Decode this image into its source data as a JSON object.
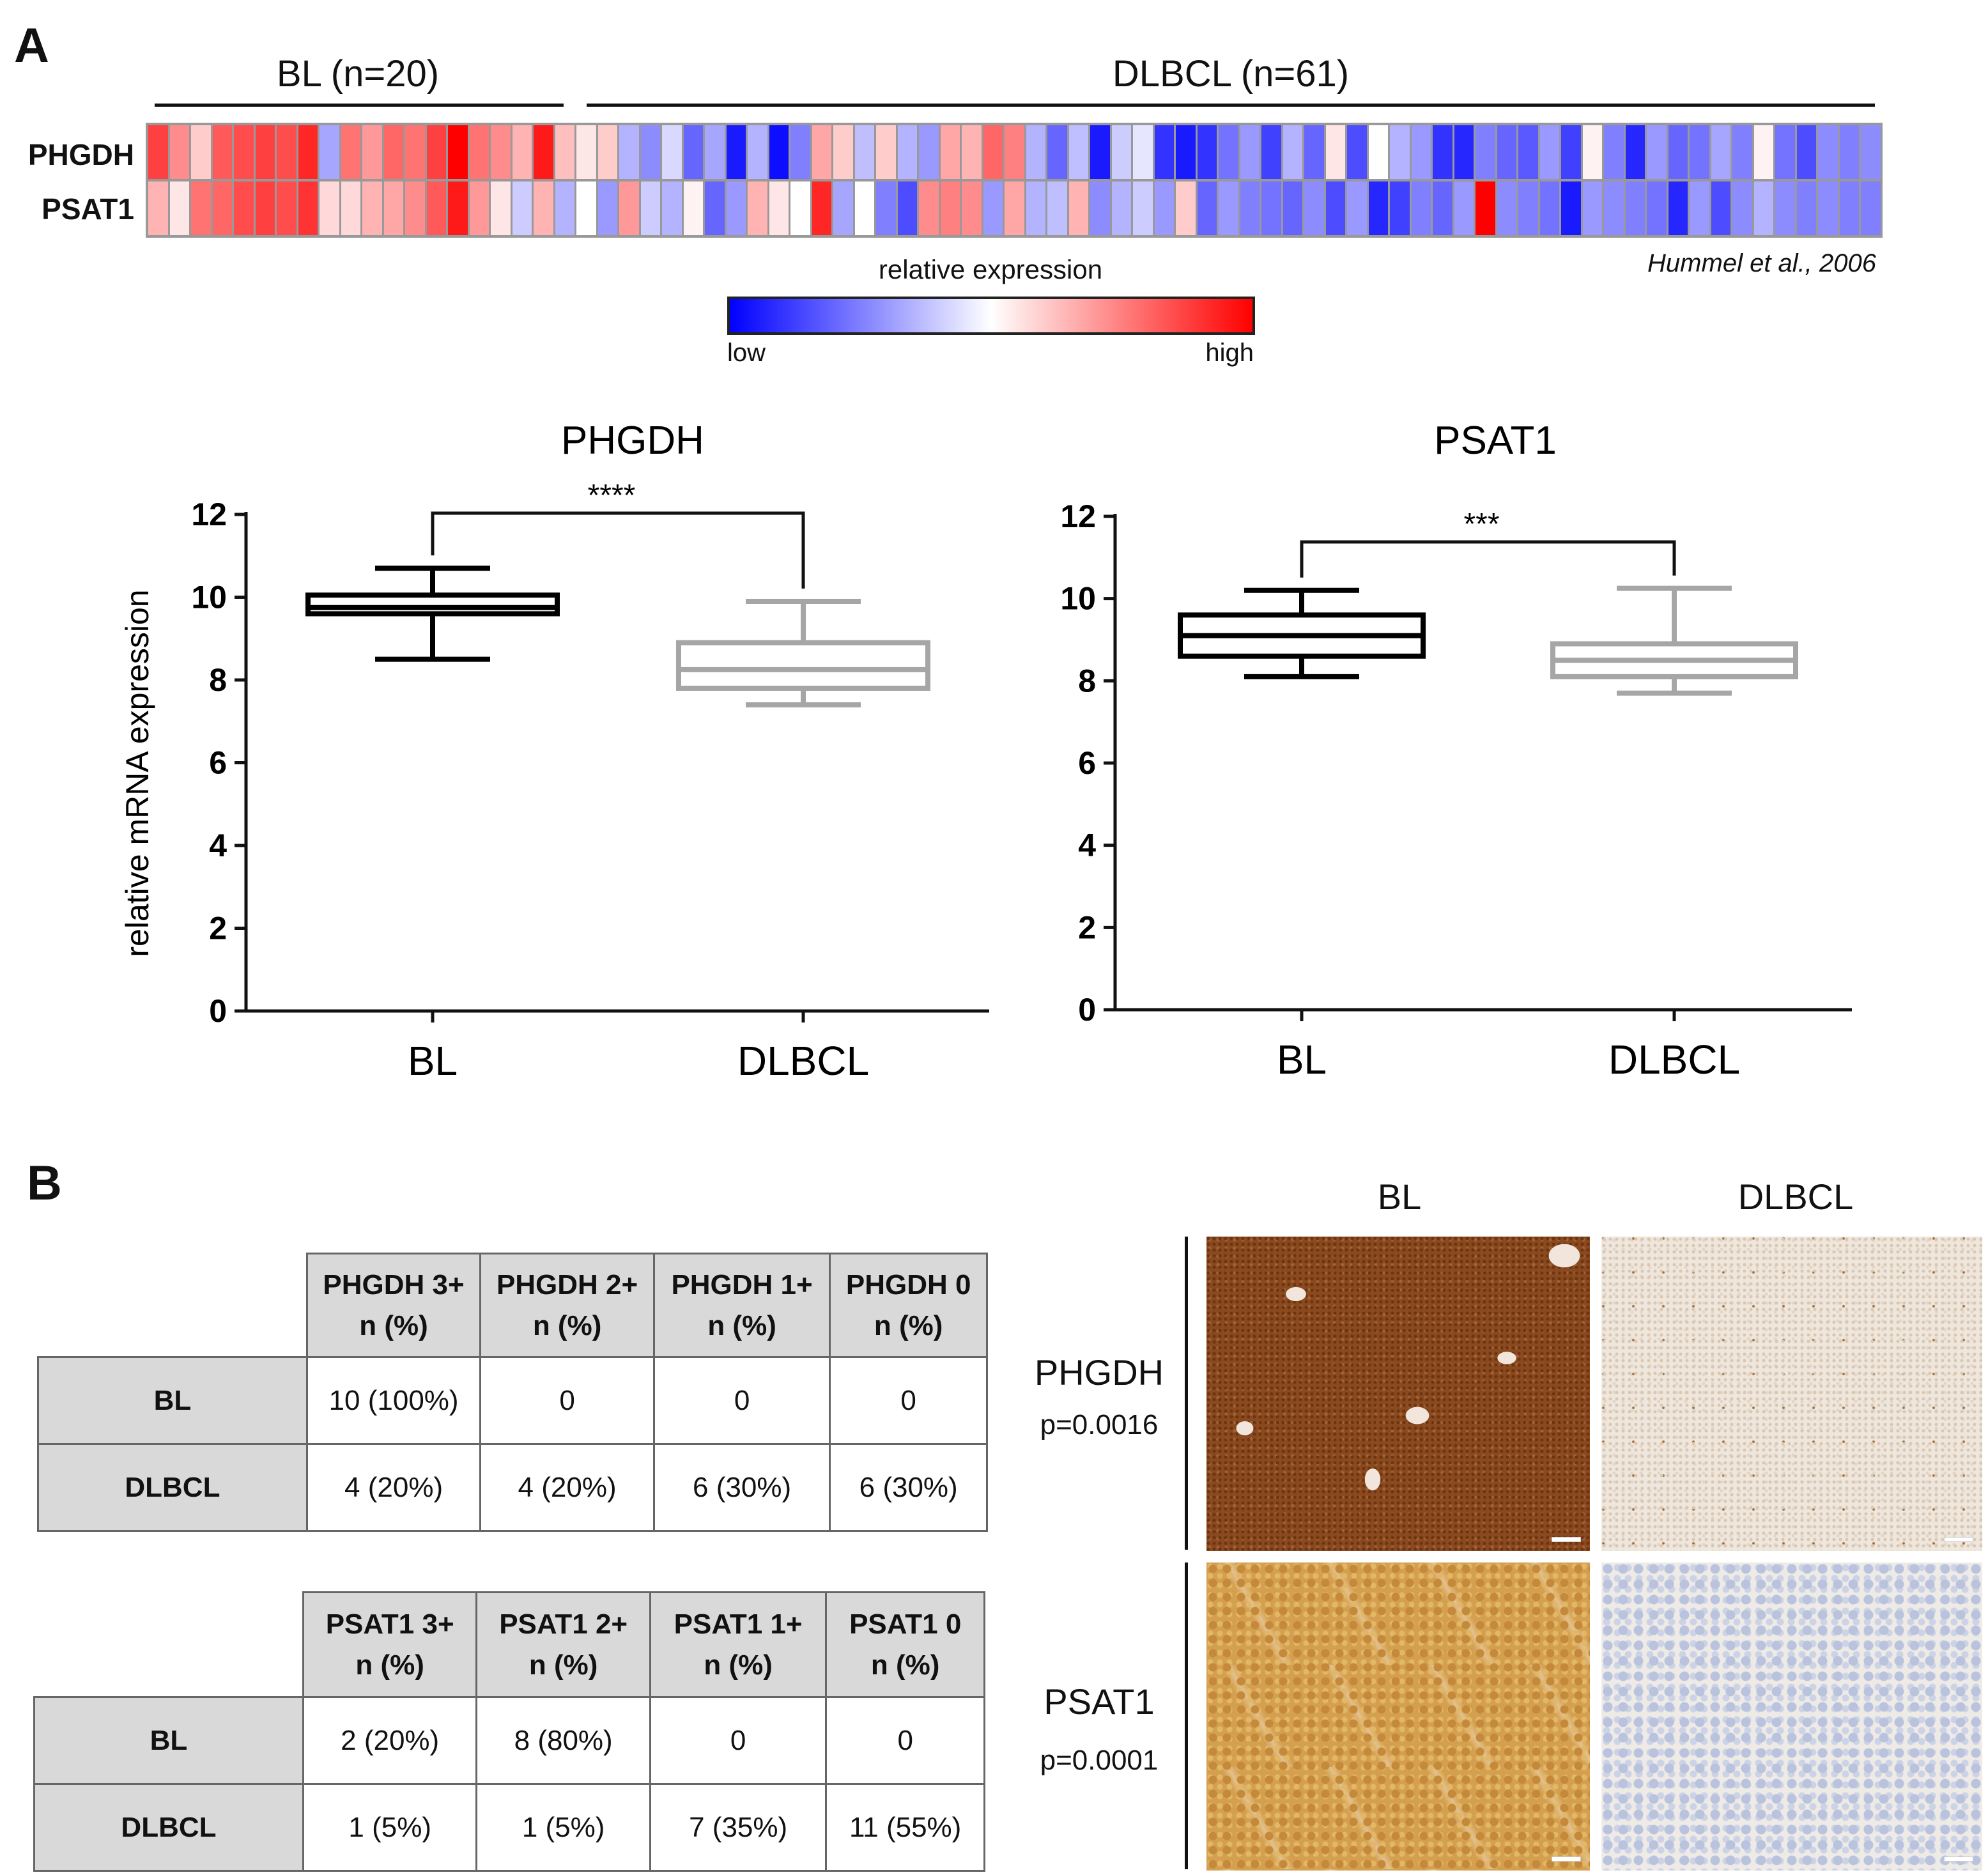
{
  "panel_a": {
    "letter": "A",
    "heatmap": {
      "groups": [
        {
          "label": "BL (n=20)"
        },
        {
          "label": "DLBCL (n=61)"
        }
      ],
      "genes": [
        "PHGDH",
        "PSAT1"
      ],
      "citation": "Hummel et al., 2006",
      "colorbar": {
        "title": "relative expression",
        "low": "low",
        "high": "high",
        "low_color": "#0000ff",
        "mid_color": "#ffffff",
        "high_color": "#ff0000"
      },
      "phgdh_values": [
        0.75,
        0.45,
        0.2,
        0.65,
        0.7,
        0.75,
        0.7,
        0.85,
        -0.35,
        0.55,
        0.4,
        0.6,
        0.55,
        0.75,
        1.0,
        0.55,
        0.45,
        0.3,
        0.9,
        0.25,
        0.1,
        0.2,
        -0.3,
        -0.45,
        -0.15,
        -0.6,
        -0.35,
        -0.9,
        -0.3,
        -0.95,
        -0.5,
        0.35,
        0.2,
        -0.25,
        0.2,
        -0.3,
        -0.4,
        0.35,
        0.3,
        0.6,
        0.5,
        -0.3,
        -0.6,
        -0.25,
        -0.9,
        -0.2,
        -0.1,
        -0.8,
        -0.9,
        -0.8,
        -0.55,
        -0.4,
        -0.75,
        -0.3,
        -0.6,
        0.1,
        -0.7,
        0.0,
        -0.3,
        -0.4,
        -0.8,
        -0.85,
        -0.5,
        -0.6,
        -0.65,
        -0.4,
        -0.75,
        0.05,
        -0.5,
        -0.85,
        -0.4,
        -0.6,
        -0.55,
        -0.35,
        -0.5,
        0.05,
        -0.55,
        -0.7,
        -0.45,
        -0.5,
        -0.45
      ],
      "psat1_values": [
        0.3,
        0.1,
        0.55,
        0.6,
        0.7,
        0.75,
        0.7,
        0.8,
        0.15,
        0.15,
        0.3,
        0.35,
        0.45,
        0.65,
        0.9,
        0.4,
        0.1,
        -0.2,
        0.3,
        -0.3,
        0.0,
        -0.4,
        0.4,
        -0.2,
        -0.3,
        0.05,
        -0.6,
        -0.4,
        0.3,
        0.1,
        0.0,
        0.85,
        -0.35,
        0.0,
        -0.5,
        -0.7,
        0.45,
        0.5,
        0.45,
        -0.4,
        0.35,
        -0.3,
        -0.25,
        0.3,
        -0.45,
        -0.3,
        -0.2,
        -0.4,
        0.2,
        -0.6,
        -0.4,
        -0.5,
        -0.55,
        -0.6,
        -0.45,
        -0.7,
        -0.4,
        -0.85,
        -0.75,
        -0.5,
        -0.6,
        -0.4,
        1.0,
        -0.45,
        -0.5,
        -0.55,
        -0.9,
        -0.4,
        -0.45,
        -0.5,
        -0.55,
        -0.85,
        -0.4,
        -0.7,
        -0.45,
        -0.3,
        -0.45,
        -0.5,
        -0.45,
        -0.5,
        -0.5
      ]
    },
    "boxplots": {
      "ylabel": "relative mRNA expression"
    }
  },
  "chart_data": [
    {
      "type": "box",
      "title": "PHGDH",
      "ylabel": "relative mRNA expression",
      "ylim": [
        0,
        12
      ],
      "yticks": [
        "0",
        "2",
        "4",
        "6",
        "8",
        "10",
        "12"
      ],
      "categories": [
        "BL",
        "DLBCL"
      ],
      "colors": [
        "#000000",
        "#a6a6a6"
      ],
      "boxes": [
        {
          "min": 8.5,
          "q1": 9.6,
          "median": 9.75,
          "q3": 10.05,
          "max": 10.7
        },
        {
          "min": 7.4,
          "q1": 7.8,
          "median": 8.25,
          "q3": 8.9,
          "max": 9.9
        }
      ],
      "significance": "****"
    },
    {
      "type": "box",
      "title": "PSAT1",
      "ylabel": "",
      "ylim": [
        0,
        12
      ],
      "yticks": [
        "0",
        "2",
        "4",
        "6",
        "8",
        "10",
        "12"
      ],
      "categories": [
        "BL",
        "DLBCL"
      ],
      "colors": [
        "#000000",
        "#a6a6a6"
      ],
      "boxes": [
        {
          "min": 8.1,
          "q1": 8.6,
          "median": 9.1,
          "q3": 9.6,
          "max": 10.2
        },
        {
          "min": 7.7,
          "q1": 8.1,
          "median": 8.5,
          "q3": 8.9,
          "max": 10.25
        }
      ],
      "significance": "***"
    }
  ],
  "panel_b": {
    "letter": "B",
    "phgdh_table": {
      "headers": [
        [
          "PHGDH 3+",
          "n (%)"
        ],
        [
          "PHGDH 2+",
          "n (%)"
        ],
        [
          "PHGDH 1+",
          "n (%)"
        ],
        [
          "PHGDH 0",
          "n (%)"
        ]
      ],
      "rows": [
        {
          "label": "BL",
          "cells": [
            "10 (100%)",
            "0",
            "0",
            "0"
          ]
        },
        {
          "label": "DLBCL",
          "cells": [
            "4 (20%)",
            "4 (20%)",
            "6 (30%)",
            "6 (30%)"
          ]
        }
      ]
    },
    "psat1_table": {
      "headers": [
        [
          "PSAT1 3+",
          "n (%)"
        ],
        [
          "PSAT1 2+",
          "n (%)"
        ],
        [
          "PSAT1 1+",
          "n (%)"
        ],
        [
          "PSAT1 0",
          "n (%)"
        ]
      ],
      "rows": [
        {
          "label": "BL",
          "cells": [
            "2 (20%)",
            "8 (80%)",
            "0",
            "0"
          ]
        },
        {
          "label": "DLBCL",
          "cells": [
            "1 (5%)",
            "1 (5%)",
            "7 (35%)",
            "11 (55%)"
          ]
        }
      ]
    },
    "ihc": {
      "columns": [
        "BL",
        "DLBCL"
      ],
      "rows": [
        {
          "gene": "PHGDH",
          "p": "p=0.0016"
        },
        {
          "gene": "PSAT1",
          "p": "p=0.0001"
        }
      ]
    }
  }
}
